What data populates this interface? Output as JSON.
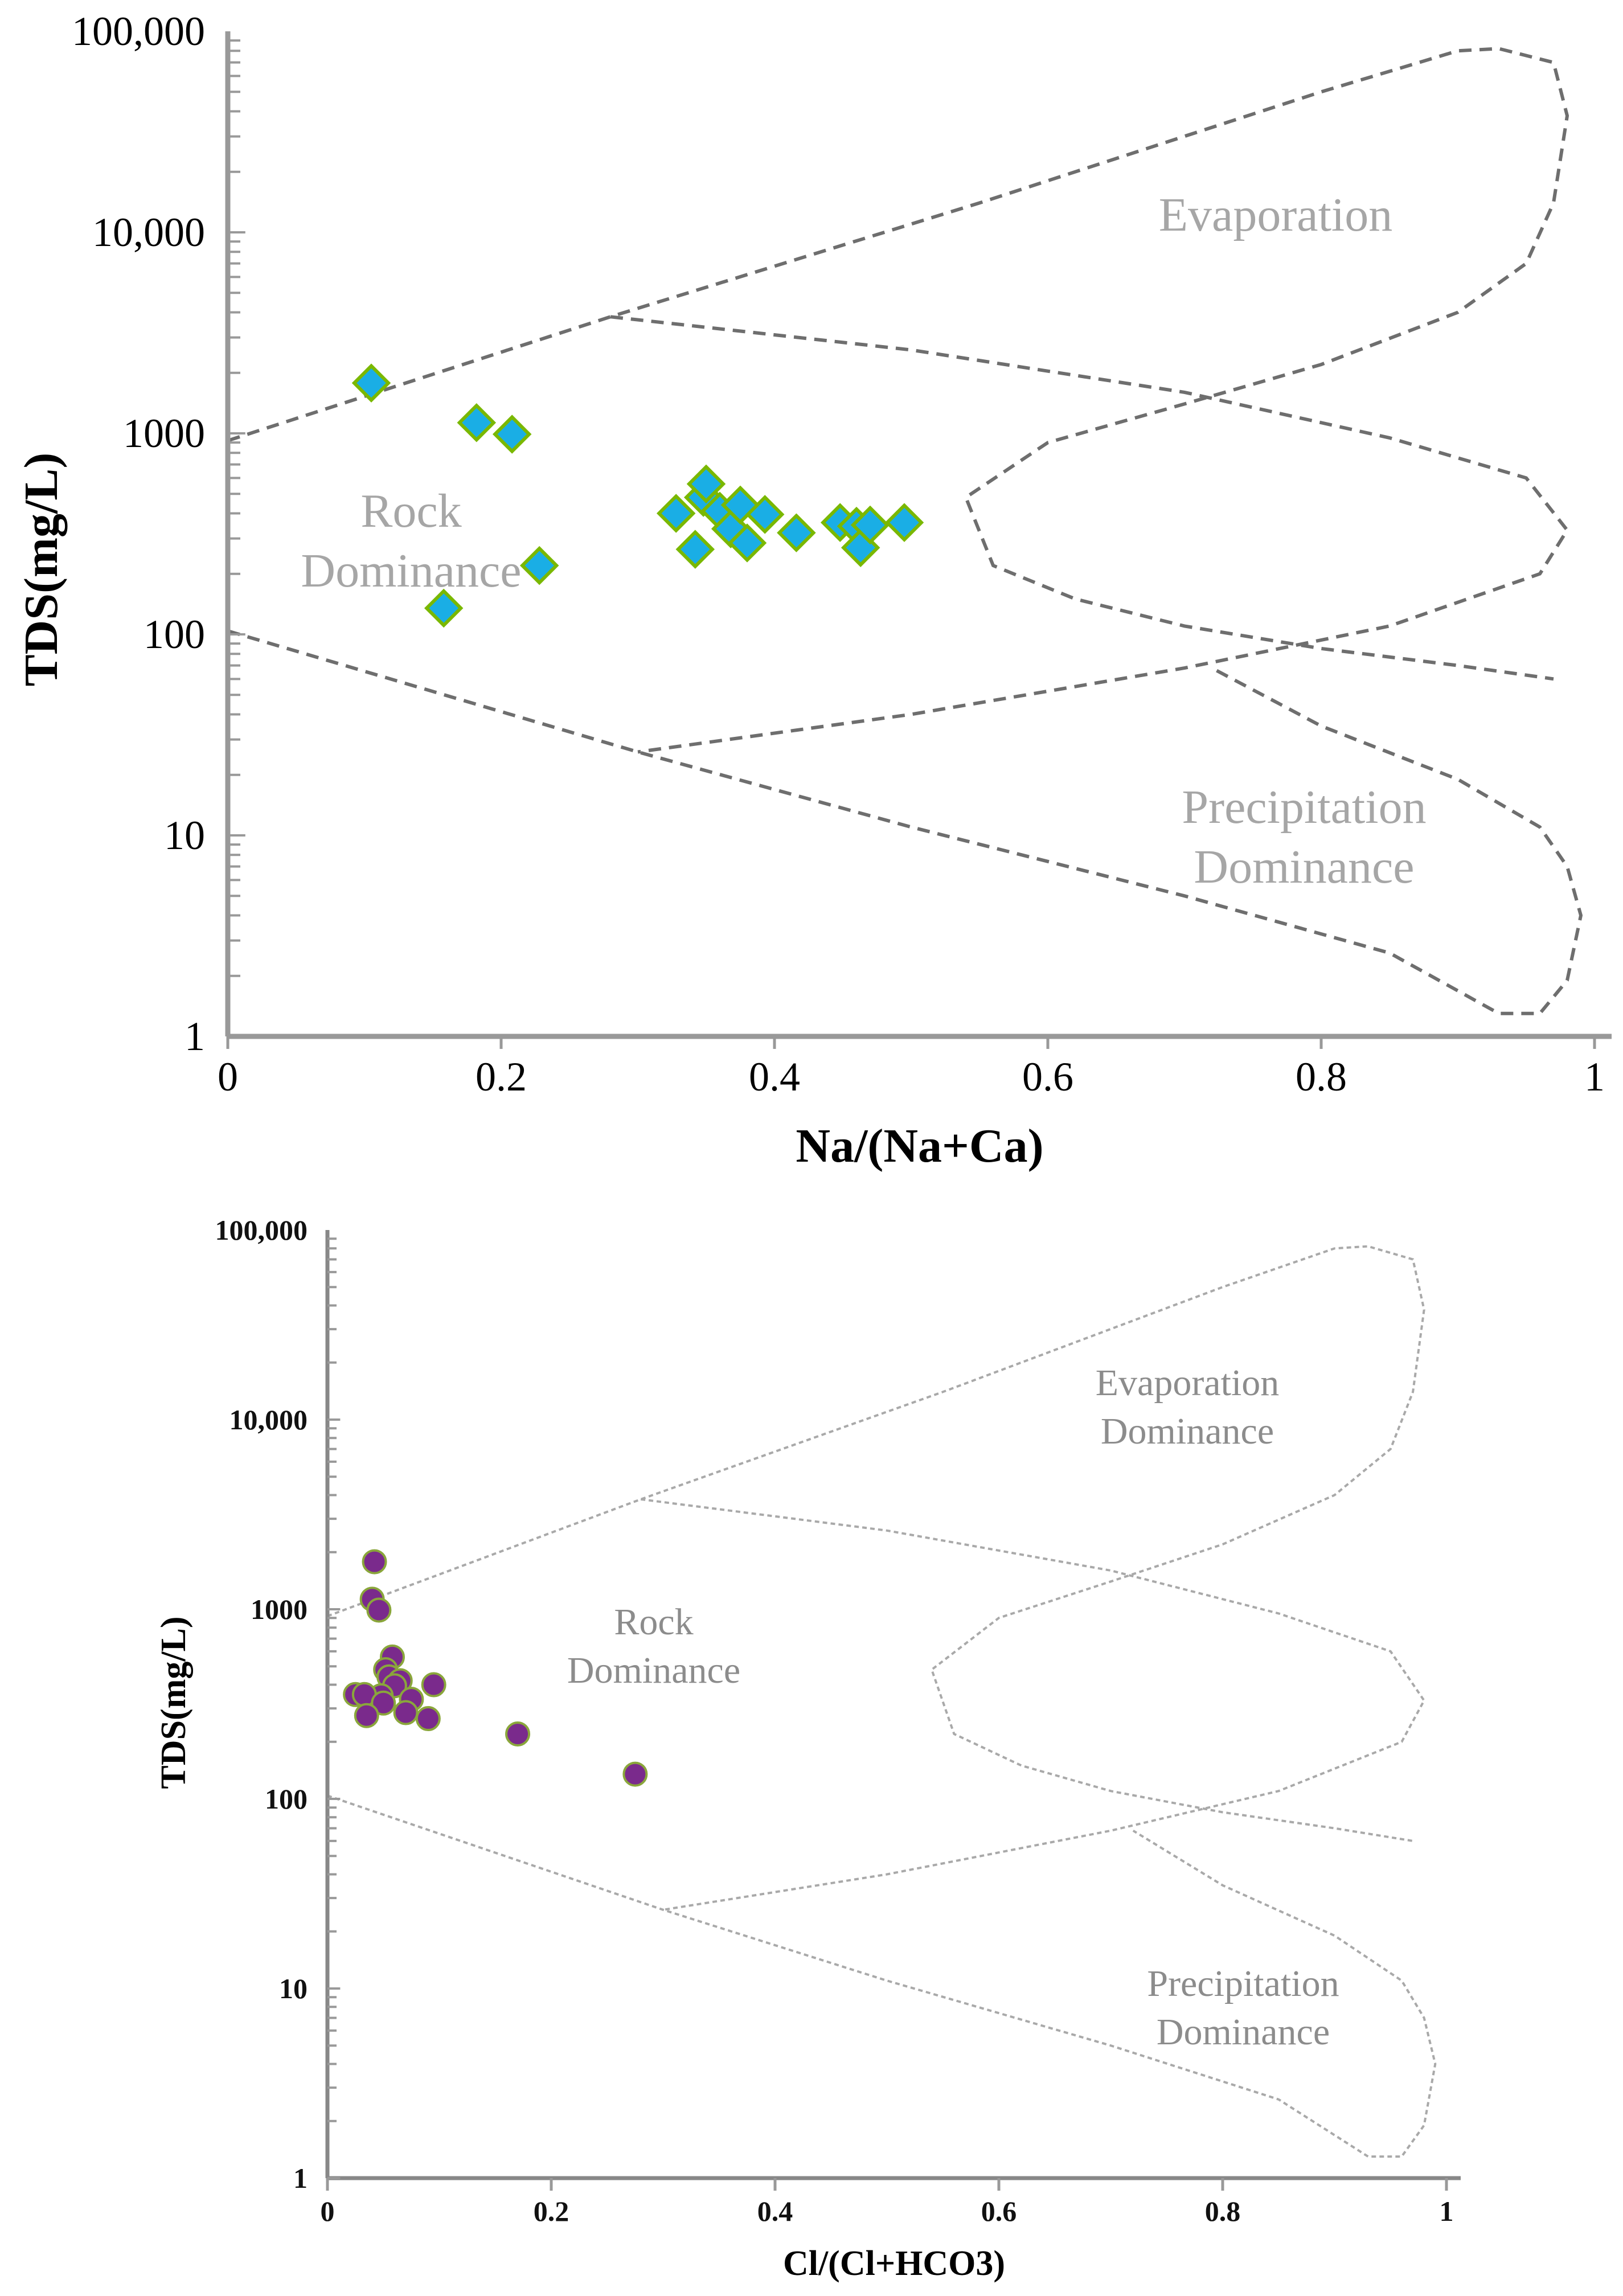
{
  "chart_data": [
    {
      "type": "scatter",
      "title": "",
      "xlabel": "Na/(Na+Ca)",
      "ylabel": "TDS(mg/L)",
      "xlim": [
        0,
        1
      ],
      "ylim": [
        1,
        100000
      ],
      "yscale": "log",
      "x_ticks": [
        "0",
        "0.2",
        "0.4",
        "0.6",
        "0.8",
        "1"
      ],
      "y_ticks": [
        "1",
        "10",
        "100",
        "1000",
        "10,000",
        "100,000"
      ],
      "region_labels": [
        {
          "id": "evaporation",
          "lines": [
            "Evaporation"
          ]
        },
        {
          "id": "rock",
          "lines": [
            "Rock",
            "Dominance"
          ]
        },
        {
          "id": "precipitation",
          "lines": [
            "Precipitation",
            "Dominance"
          ]
        }
      ],
      "marker": {
        "shape": "diamond",
        "fill": "#1aaee5",
        "edge": "#7ab800"
      },
      "boundary_color": "#6e6e6e",
      "points": [
        {
          "x": 0.105,
          "y": 1780
        },
        {
          "x": 0.182,
          "y": 1130
        },
        {
          "x": 0.208,
          "y": 990
        },
        {
          "x": 0.228,
          "y": 220
        },
        {
          "x": 0.158,
          "y": 135
        },
        {
          "x": 0.328,
          "y": 400
        },
        {
          "x": 0.342,
          "y": 265
        },
        {
          "x": 0.348,
          "y": 480
        },
        {
          "x": 0.35,
          "y": 560
        },
        {
          "x": 0.36,
          "y": 410
        },
        {
          "x": 0.368,
          "y": 335
        },
        {
          "x": 0.375,
          "y": 440
        },
        {
          "x": 0.38,
          "y": 285
        },
        {
          "x": 0.393,
          "y": 395
        },
        {
          "x": 0.416,
          "y": 320
        },
        {
          "x": 0.448,
          "y": 360
        },
        {
          "x": 0.46,
          "y": 345
        },
        {
          "x": 0.463,
          "y": 270
        },
        {
          "x": 0.47,
          "y": 350
        },
        {
          "x": 0.495,
          "y": 360
        }
      ],
      "boundaries": [
        [
          [
            0,
            920
          ],
          [
            0.28,
            3800
          ],
          [
            0.55,
            14000
          ],
          [
            0.8,
            50000
          ],
          [
            0.9,
            80000
          ],
          [
            0.93,
            82000
          ],
          [
            0.97,
            70000
          ],
          [
            0.98,
            38000
          ],
          [
            0.97,
            14000
          ],
          [
            0.95,
            7000
          ],
          [
            0.9,
            4000
          ],
          [
            0.8,
            2200
          ],
          [
            0.7,
            1400
          ],
          [
            0.6,
            900
          ],
          [
            0.54,
            480
          ],
          [
            0.56,
            220
          ],
          [
            0.62,
            150
          ],
          [
            0.7,
            110
          ],
          [
            0.8,
            85
          ],
          [
            0.9,
            70
          ],
          [
            0.97,
            60
          ]
        ],
        [
          [
            0.28,
            3800
          ],
          [
            0.5,
            2600
          ],
          [
            0.7,
            1600
          ],
          [
            0.85,
            950
          ],
          [
            0.95,
            600
          ],
          [
            0.98,
            330
          ],
          [
            0.96,
            200
          ],
          [
            0.85,
            110
          ],
          [
            0.7,
            68
          ],
          [
            0.5,
            40
          ],
          [
            0.3,
            26
          ]
        ],
        [
          [
            0,
            104
          ],
          [
            0.3,
            26
          ],
          [
            0.5,
            11
          ],
          [
            0.7,
            5
          ],
          [
            0.85,
            2.6
          ],
          [
            0.93,
            1.3
          ],
          [
            0.96,
            1.3
          ],
          [
            0.98,
            1.9
          ],
          [
            0.99,
            4
          ],
          [
            0.98,
            7
          ],
          [
            0.96,
            11
          ],
          [
            0.9,
            19
          ],
          [
            0.8,
            35
          ],
          [
            0.72,
            68
          ]
        ]
      ]
    },
    {
      "type": "scatter",
      "title": "",
      "xlabel": "Cl/(Cl+HCO3)",
      "ylabel": "TDS(mg/L)",
      "xlim": [
        0,
        1
      ],
      "ylim": [
        1,
        100000
      ],
      "yscale": "log",
      "x_ticks": [
        "0",
        "0.2",
        "0.4",
        "0.6",
        "0.8",
        "1"
      ],
      "y_ticks": [
        "1",
        "10",
        "100",
        "1000",
        "10,000",
        "100,000"
      ],
      "region_labels": [
        {
          "id": "evaporation",
          "lines": [
            "Evaporation",
            "Dominance"
          ]
        },
        {
          "id": "rock",
          "lines": [
            "Rock",
            "Dominance"
          ]
        },
        {
          "id": "precipitation",
          "lines": [
            "Precipitation",
            "Dominance"
          ]
        }
      ],
      "marker": {
        "shape": "circle",
        "fill": "#7a2a8c",
        "edge": "#8aa63b"
      },
      "boundary_color": "#a9a9a9",
      "points": [
        {
          "x": 0.042,
          "y": 1780
        },
        {
          "x": 0.04,
          "y": 1130
        },
        {
          "x": 0.046,
          "y": 990
        },
        {
          "x": 0.058,
          "y": 560
        },
        {
          "x": 0.052,
          "y": 480
        },
        {
          "x": 0.055,
          "y": 440
        },
        {
          "x": 0.065,
          "y": 420
        },
        {
          "x": 0.095,
          "y": 400
        },
        {
          "x": 0.06,
          "y": 395
        },
        {
          "x": 0.048,
          "y": 350
        },
        {
          "x": 0.025,
          "y": 355
        },
        {
          "x": 0.033,
          "y": 355
        },
        {
          "x": 0.075,
          "y": 335
        },
        {
          "x": 0.05,
          "y": 320
        },
        {
          "x": 0.07,
          "y": 285
        },
        {
          "x": 0.035,
          "y": 275
        },
        {
          "x": 0.09,
          "y": 265
        },
        {
          "x": 0.17,
          "y": 220
        },
        {
          "x": 0.275,
          "y": 135
        }
      ],
      "boundaries": [
        [
          [
            0,
            920
          ],
          [
            0.28,
            3800
          ],
          [
            0.55,
            14000
          ],
          [
            0.8,
            50000
          ],
          [
            0.9,
            80000
          ],
          [
            0.93,
            82000
          ],
          [
            0.97,
            70000
          ],
          [
            0.98,
            38000
          ],
          [
            0.97,
            14000
          ],
          [
            0.95,
            7000
          ],
          [
            0.9,
            4000
          ],
          [
            0.8,
            2200
          ],
          [
            0.7,
            1400
          ],
          [
            0.6,
            900
          ],
          [
            0.54,
            480
          ],
          [
            0.56,
            220
          ],
          [
            0.62,
            150
          ],
          [
            0.7,
            110
          ],
          [
            0.8,
            85
          ],
          [
            0.9,
            70
          ],
          [
            0.97,
            60
          ]
        ],
        [
          [
            0.28,
            3800
          ],
          [
            0.5,
            2600
          ],
          [
            0.7,
            1600
          ],
          [
            0.85,
            950
          ],
          [
            0.95,
            600
          ],
          [
            0.98,
            330
          ],
          [
            0.96,
            200
          ],
          [
            0.85,
            110
          ],
          [
            0.7,
            68
          ],
          [
            0.5,
            40
          ],
          [
            0.3,
            26
          ]
        ],
        [
          [
            0,
            104
          ],
          [
            0.3,
            26
          ],
          [
            0.5,
            11
          ],
          [
            0.7,
            5
          ],
          [
            0.85,
            2.6
          ],
          [
            0.93,
            1.3
          ],
          [
            0.96,
            1.3
          ],
          [
            0.98,
            1.9
          ],
          [
            0.99,
            4
          ],
          [
            0.98,
            7
          ],
          [
            0.96,
            11
          ],
          [
            0.9,
            19
          ],
          [
            0.8,
            35
          ],
          [
            0.72,
            68
          ]
        ]
      ]
    }
  ]
}
